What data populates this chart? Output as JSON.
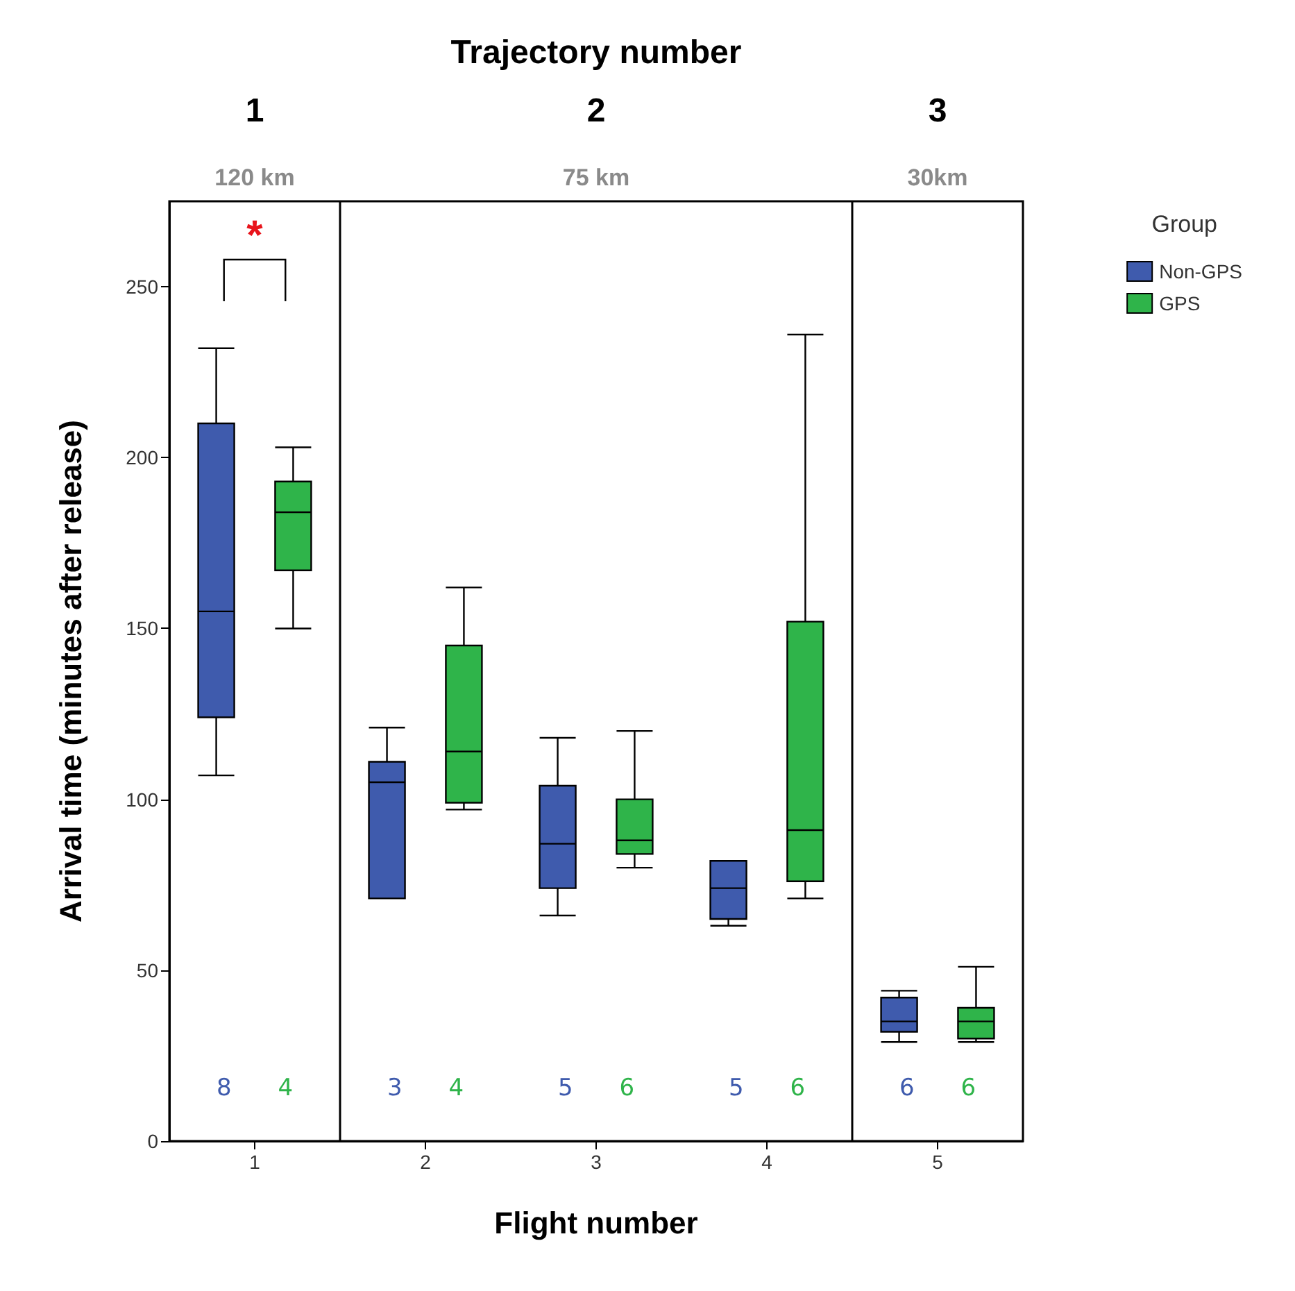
{
  "chart_data": {
    "type": "box",
    "xlabel": "Flight number",
    "ylabel": "Arrival time (minutes after release)",
    "x2label": "Trajectory number",
    "legend_title": "Group",
    "legend": "top right",
    "grid": false,
    "categories": [
      "1",
      "2",
      "3",
      "4",
      "5"
    ],
    "ylim": [
      0,
      275
    ],
    "yticks": [
      0,
      50,
      100,
      150,
      200,
      250
    ],
    "series": [
      {
        "name": "Non-GPS",
        "color": "#3f5bad",
        "value_labels": [
          "8",
          "3",
          "5",
          "5",
          "6"
        ],
        "boxes": [
          {
            "low": 107,
            "q1": 124,
            "median": 155,
            "q3": 210,
            "high": 232
          },
          {
            "low": 71,
            "q1": 71,
            "median": 105,
            "q3": 111,
            "high": 121
          },
          {
            "low": 66,
            "q1": 74,
            "median": 87,
            "q3": 104,
            "high": 118
          },
          {
            "low": 63,
            "q1": 65,
            "median": 74,
            "q3": 82,
            "high": 82
          },
          {
            "low": 29,
            "q1": 32,
            "median": 35,
            "q3": 42,
            "high": 44
          }
        ]
      },
      {
        "name": "GPS",
        "color": "#2fb44a",
        "value_labels": [
          "4",
          "4",
          "6",
          "6",
          "6"
        ],
        "boxes": [
          {
            "low": 150,
            "q1": 167,
            "median": 184,
            "q3": 193,
            "high": 203
          },
          {
            "low": 97,
            "q1": 99,
            "median": 114,
            "q3": 145,
            "high": 162
          },
          {
            "low": 80,
            "q1": 84,
            "median": 88,
            "q3": 100,
            "high": 120
          },
          {
            "low": 71,
            "q1": 76,
            "median": 91,
            "q3": 152,
            "high": 236
          },
          {
            "low": 29,
            "q1": 30,
            "median": 35,
            "q3": 39,
            "high": 51
          }
        ]
      }
    ],
    "annotations": [
      "*",
      "1",
      "2",
      "3",
      "120 km",
      "75 km",
      "30km"
    ]
  }
}
